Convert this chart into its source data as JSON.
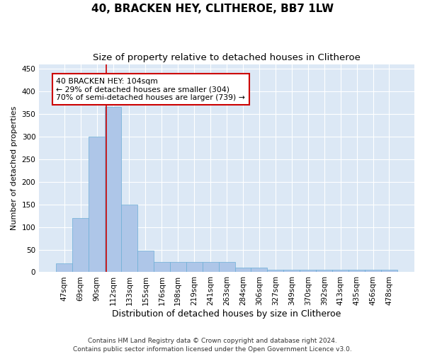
{
  "title": "40, BRACKEN HEY, CLITHEROE, BB7 1LW",
  "subtitle": "Size of property relative to detached houses in Clitheroe",
  "xlabel": "Distribution of detached houses by size in Clitheroe",
  "ylabel": "Number of detached properties",
  "bar_labels": [
    "47sqm",
    "69sqm",
    "90sqm",
    "112sqm",
    "133sqm",
    "155sqm",
    "176sqm",
    "198sqm",
    "219sqm",
    "241sqm",
    "263sqm",
    "284sqm",
    "306sqm",
    "327sqm",
    "349sqm",
    "370sqm",
    "392sqm",
    "413sqm",
    "435sqm",
    "456sqm",
    "478sqm"
  ],
  "bar_values": [
    20,
    120,
    300,
    365,
    150,
    48,
    22,
    22,
    22,
    22,
    22,
    10,
    10,
    5,
    5,
    5,
    5,
    5,
    5,
    5,
    5
  ],
  "bar_color": "#aec6e8",
  "bar_edgecolor": "#6baed6",
  "bar_width": 1.0,
  "vline_x": 2.57,
  "vline_color": "#cc0000",
  "annotation_text": "40 BRACKEN HEY: 104sqm\n← 29% of detached houses are smaller (304)\n70% of semi-detached houses are larger (739) →",
  "annotation_box_color": "#ffffff",
  "annotation_box_edgecolor": "#cc0000",
  "ylim": [
    0,
    460
  ],
  "yticks": [
    0,
    50,
    100,
    150,
    200,
    250,
    300,
    350,
    400,
    450
  ],
  "bg_color": "#dce8f5",
  "fig_bg": "#ffffff",
  "footer": "Contains HM Land Registry data © Crown copyright and database right 2024.\nContains public sector information licensed under the Open Government Licence v3.0.",
  "title_fontsize": 11,
  "subtitle_fontsize": 9.5,
  "xlabel_fontsize": 9,
  "ylabel_fontsize": 8,
  "tick_fontsize": 7.5,
  "footer_fontsize": 6.5,
  "annotation_fontsize": 7.8
}
